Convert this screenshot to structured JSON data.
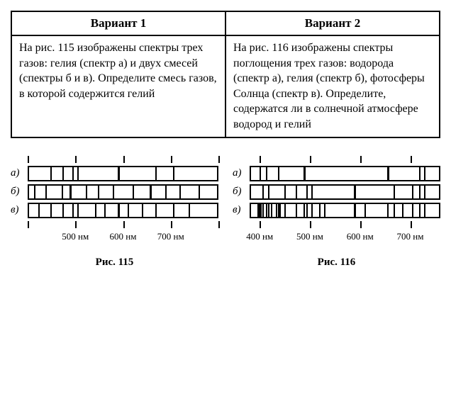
{
  "table": {
    "headers": [
      "Вариант 1",
      "Вариант 2"
    ],
    "cells": [
      "На рис. 115 изображены спектры трех газов: гелия (спектр а) и двух смесей (спектры б и в). Определите смесь газов, в которой содержится гелий",
      "На рис. 116 изображены спектры поглощения трех газов: водорода (спектр а), гелия (спектр б), фотосферы Солнца (спектр в). Определите, содержатся ли в солнечной атмосфере водород и гелий"
    ]
  },
  "figures": [
    {
      "caption": "Рис. 115",
      "axis_min": 400,
      "axis_max": 800,
      "major_ticks": [
        400,
        500,
        600,
        700,
        800
      ],
      "tick_labels": [
        {
          "pos": 500,
          "text": "500 нм"
        },
        {
          "pos": 600,
          "text": "600 нм"
        },
        {
          "pos": 700,
          "text": "700 нм"
        }
      ],
      "rows": [
        {
          "label": "а)",
          "lines": [
            {
              "p": 446,
              "w": 2
            },
            {
              "p": 471,
              "w": 2
            },
            {
              "p": 492,
              "w": 2
            },
            {
              "p": 502,
              "w": 2
            },
            {
              "p": 588,
              "w": 3
            },
            {
              "p": 668,
              "w": 2
            },
            {
              "p": 706,
              "w": 2
            }
          ]
        },
        {
          "label": "б)",
          "lines": [
            {
              "p": 410,
              "w": 2
            },
            {
              "p": 434,
              "w": 2
            },
            {
              "p": 470,
              "w": 2
            },
            {
              "p": 486,
              "w": 3
            },
            {
              "p": 520,
              "w": 2
            },
            {
              "p": 546,
              "w": 2
            },
            {
              "p": 578,
              "w": 2
            },
            {
              "p": 620,
              "w": 2
            },
            {
              "p": 656,
              "w": 3
            },
            {
              "p": 690,
              "w": 2
            },
            {
              "p": 720,
              "w": 2
            },
            {
              "p": 760,
              "w": 2
            }
          ]
        },
        {
          "label": "в)",
          "lines": [
            {
              "p": 420,
              "w": 2
            },
            {
              "p": 446,
              "w": 2
            },
            {
              "p": 471,
              "w": 2
            },
            {
              "p": 492,
              "w": 2
            },
            {
              "p": 502,
              "w": 2
            },
            {
              "p": 540,
              "w": 2
            },
            {
              "p": 560,
              "w": 2
            },
            {
              "p": 588,
              "w": 3
            },
            {
              "p": 610,
              "w": 2
            },
            {
              "p": 640,
              "w": 2
            },
            {
              "p": 668,
              "w": 2
            },
            {
              "p": 706,
              "w": 2
            },
            {
              "p": 740,
              "w": 2
            }
          ]
        }
      ]
    },
    {
      "caption": "Рис. 116",
      "axis_min": 380,
      "axis_max": 760,
      "major_ticks": [
        400,
        500,
        600,
        700
      ],
      "tick_labels": [
        {
          "pos": 400,
          "text": "400 нм"
        },
        {
          "pos": 500,
          "text": "500 нм"
        },
        {
          "pos": 600,
          "text": "600 нм"
        },
        {
          "pos": 700,
          "text": "700 нм"
        }
      ],
      "rows": [
        {
          "label": "а)",
          "lines": [
            {
              "p": 397,
              "w": 2
            },
            {
              "p": 410,
              "w": 2
            },
            {
              "p": 434,
              "w": 2
            },
            {
              "p": 486,
              "w": 3
            },
            {
              "p": 656,
              "w": 3
            },
            {
              "p": 720,
              "w": 2
            },
            {
              "p": 730,
              "w": 2
            }
          ]
        },
        {
          "label": "б)",
          "lines": [
            {
              "p": 403,
              "w": 2
            },
            {
              "p": 414,
              "w": 2
            },
            {
              "p": 447,
              "w": 2
            },
            {
              "p": 471,
              "w": 2
            },
            {
              "p": 492,
              "w": 2
            },
            {
              "p": 502,
              "w": 2
            },
            {
              "p": 588,
              "w": 3
            },
            {
              "p": 668,
              "w": 2
            },
            {
              "p": 706,
              "w": 2
            },
            {
              "p": 720,
              "w": 2
            },
            {
              "p": 730,
              "w": 2
            }
          ]
        },
        {
          "label": "в)",
          "lines": [
            {
              "p": 393,
              "w": 3
            },
            {
              "p": 397,
              "w": 3
            },
            {
              "p": 403,
              "w": 2
            },
            {
              "p": 410,
              "w": 2
            },
            {
              "p": 414,
              "w": 2
            },
            {
              "p": 420,
              "w": 2
            },
            {
              "p": 430,
              "w": 2
            },
            {
              "p": 434,
              "w": 2
            },
            {
              "p": 438,
              "w": 2
            },
            {
              "p": 447,
              "w": 2
            },
            {
              "p": 471,
              "w": 2
            },
            {
              "p": 486,
              "w": 2
            },
            {
              "p": 492,
              "w": 2
            },
            {
              "p": 502,
              "w": 2
            },
            {
              "p": 517,
              "w": 2
            },
            {
              "p": 527,
              "w": 2
            },
            {
              "p": 588,
              "w": 3
            },
            {
              "p": 610,
              "w": 2
            },
            {
              "p": 656,
              "w": 2
            },
            {
              "p": 668,
              "w": 2
            },
            {
              "p": 686,
              "w": 2
            },
            {
              "p": 706,
              "w": 2
            },
            {
              "p": 720,
              "w": 2
            },
            {
              "p": 730,
              "w": 2
            }
          ]
        }
      ]
    }
  ]
}
